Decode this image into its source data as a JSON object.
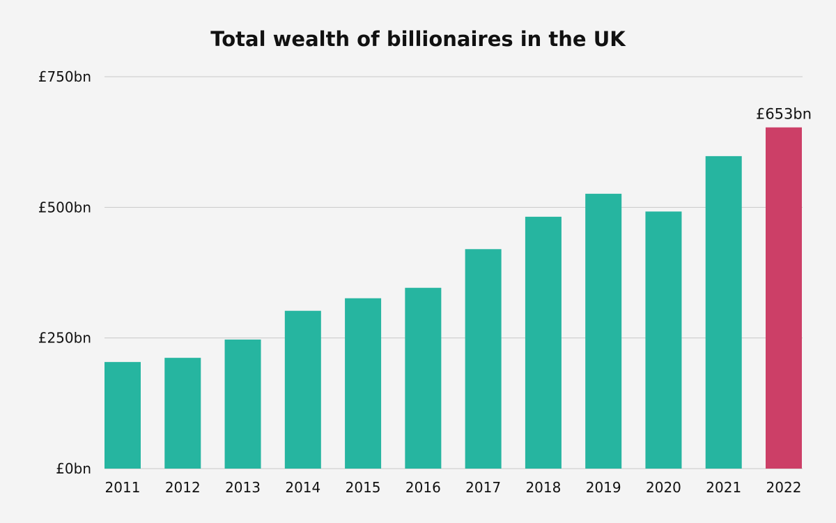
{
  "chart_data": {
    "type": "bar",
    "title": "Total wealth of billionaires in the UK",
    "xlabel": "",
    "ylabel": "",
    "categories": [
      "2011",
      "2012",
      "2013",
      "2014",
      "2015",
      "2016",
      "2017",
      "2018",
      "2019",
      "2020",
      "2021",
      "2022"
    ],
    "values": [
      204,
      212,
      247,
      302,
      326,
      346,
      420,
      482,
      526,
      492,
      598,
      653
    ],
    "unit": "£bn",
    "ylim": [
      0,
      750
    ],
    "yticks": [
      0,
      250,
      500,
      750
    ],
    "ytick_labels": [
      "£0bn",
      "£250bn",
      "£500bn",
      "£750bn"
    ],
    "grid": true,
    "annotations": [
      {
        "category": "2022",
        "text": "£653bn"
      }
    ],
    "colors": {
      "default": "#26b5a0",
      "highlight": "#cc3f67",
      "grid": "#c8c8c8"
    },
    "highlight_category": "2022"
  }
}
